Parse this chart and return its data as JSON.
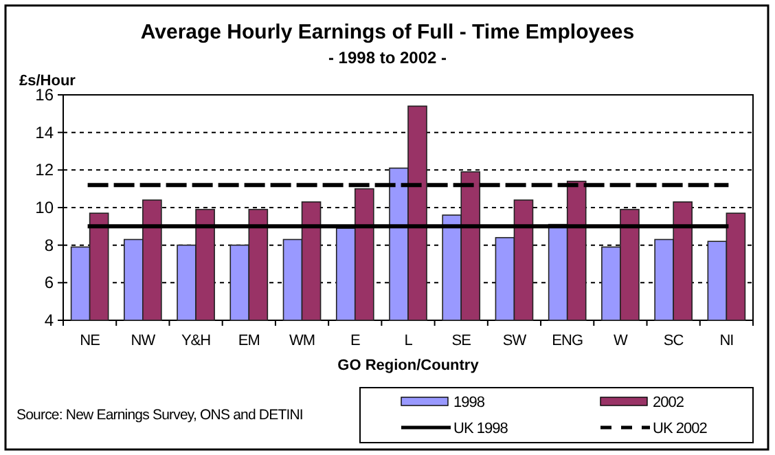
{
  "chart_data": {
    "type": "bar",
    "title": "Average Hourly Earnings of Full - Time Employees",
    "subtitle": "- 1998 to 2002 -",
    "ylabel": "£s/Hour",
    "xlabel": "GO Region/Country",
    "categories": [
      "NE",
      "NW",
      "Y&H",
      "EM",
      "WM",
      "E",
      "L",
      "SE",
      "SW",
      "ENG",
      "W",
      "SC",
      "NI"
    ],
    "series": [
      {
        "name": "1998",
        "color": "#9999ff",
        "values": [
          7.9,
          8.3,
          8.0,
          8.0,
          8.3,
          8.9,
          12.1,
          9.6,
          8.4,
          9.1,
          7.9,
          8.3,
          8.2
        ]
      },
      {
        "name": "2002",
        "color": "#993366",
        "values": [
          9.7,
          10.4,
          9.9,
          9.9,
          10.3,
          11.0,
          15.4,
          11.9,
          10.4,
          11.4,
          9.9,
          10.3,
          9.7
        ]
      },
      {
        "name": "UK 1998",
        "type": "line",
        "color": "#000000",
        "line_style": "solid",
        "values": [
          9.0,
          9.0,
          9.0,
          9.0,
          9.0,
          9.0,
          9.0,
          9.0,
          9.0,
          9.0,
          9.0,
          9.0,
          9.0
        ]
      },
      {
        "name": "UK 2002",
        "type": "line",
        "color": "#000000",
        "line_style": "dashed",
        "values": [
          11.2,
          11.2,
          11.2,
          11.2,
          11.2,
          11.2,
          11.2,
          11.2,
          11.2,
          11.2,
          11.2,
          11.2,
          11.2
        ]
      }
    ],
    "ylim": [
      4,
      16
    ],
    "yticks": [
      4,
      6,
      8,
      10,
      12,
      14,
      16
    ],
    "grid": "y",
    "legend": "bottom right",
    "annotations": [
      "Source: New Earnings Survey, ONS and DETINI"
    ]
  }
}
